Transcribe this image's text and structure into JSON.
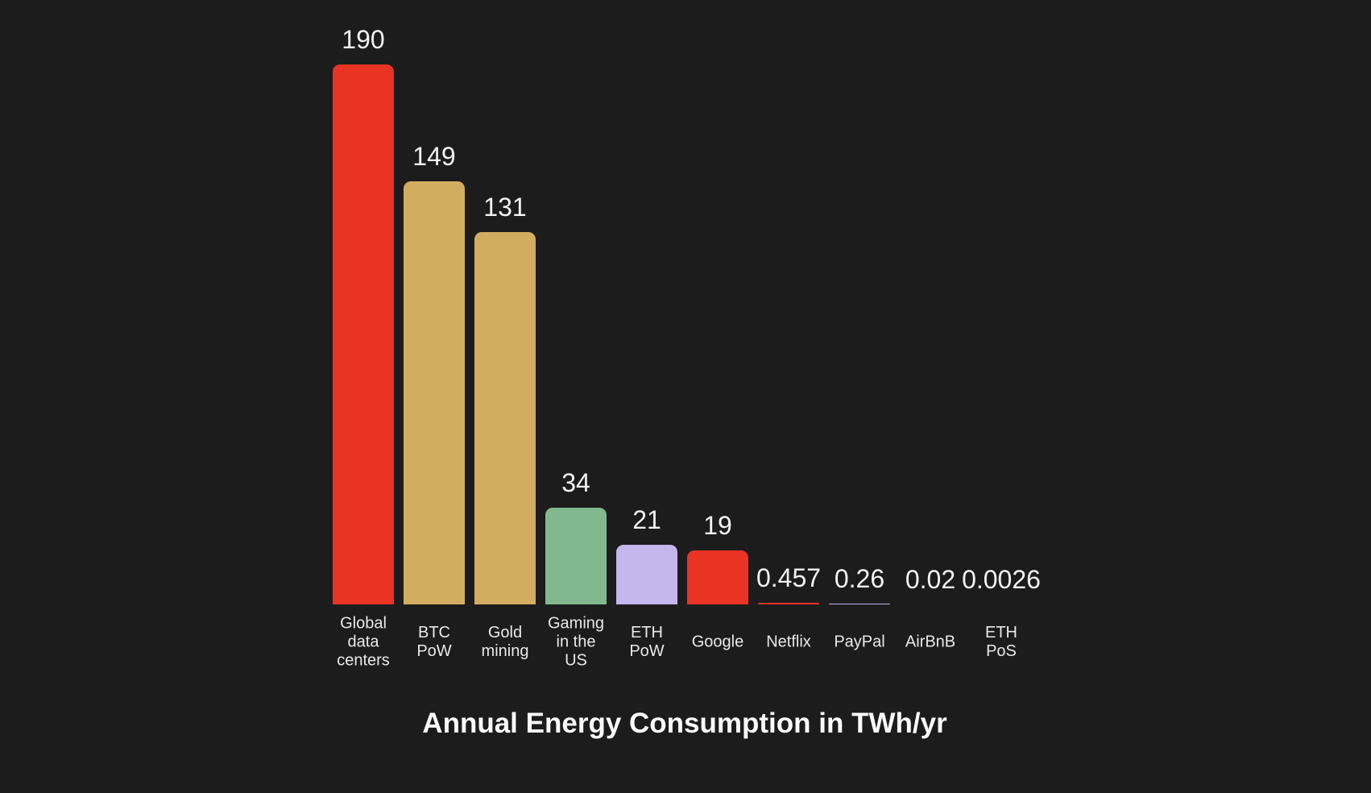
{
  "chart_data": {
    "type": "bar",
    "title": "Annual Energy Consumption in TWh/yr",
    "categories": [
      "Global data centers",
      "BTC PoW",
      "Gold mining",
      "Gaming in the US",
      "ETH PoW",
      "Google",
      "Netflix",
      "PayPal",
      "AirBnB",
      "ETH PoS"
    ],
    "category_lines": [
      [
        "Global",
        "data",
        "centers"
      ],
      [
        "BTC",
        "PoW"
      ],
      [
        "Gold",
        "mining"
      ],
      [
        "Gaming",
        "in the",
        "US"
      ],
      [
        "ETH",
        "PoW"
      ],
      [
        "Google"
      ],
      [
        "Netflix"
      ],
      [
        "PayPal"
      ],
      [
        "AirBnB"
      ],
      [
        "ETH",
        "PoS"
      ]
    ],
    "values": [
      190,
      149,
      131,
      34,
      21,
      19,
      0.457,
      0.26,
      0.02,
      0.0026
    ],
    "value_labels": [
      "190",
      "149",
      "131",
      "34",
      "21",
      "19",
      "0.457",
      "0.26",
      "0.02",
      "0.0026"
    ],
    "bar_colors": [
      "#e93323",
      "#d3ad5f",
      "#d3ad5f",
      "#81b88d",
      "#c5b6ed",
      "#e93323",
      "#e93323",
      "#c5b6ed",
      "#e93323",
      "#c5b6ed"
    ],
    "xlabel": "",
    "ylabel": "",
    "ylim": [
      0,
      190
    ],
    "grid": false,
    "legend": null,
    "orientation": "vertical",
    "background_color": "#1c1c1d",
    "text_color": "#f2f2f2"
  }
}
